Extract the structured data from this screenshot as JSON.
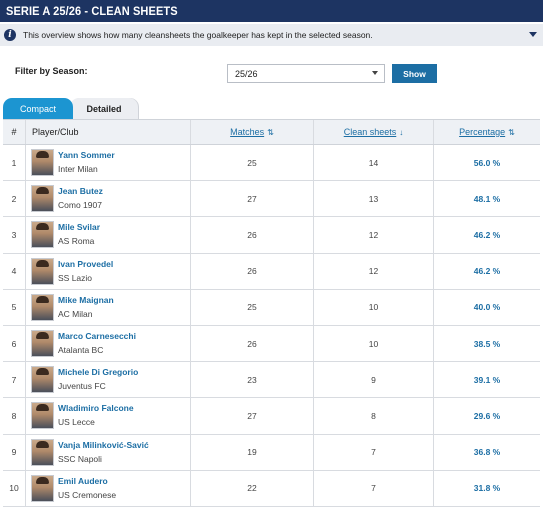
{
  "header": {
    "title": "SERIE A 25/26 - CLEAN SHEETS"
  },
  "info": {
    "icon": "info-icon",
    "text": "This overview shows how many cleansheets the goalkeeper has kept in the selected season."
  },
  "filter": {
    "label": "Filter by Season:",
    "season_value": "25/26",
    "show_label": "Show"
  },
  "tabs": [
    {
      "label": "Compact",
      "active": true
    },
    {
      "label": "Detailed",
      "active": false
    }
  ],
  "table": {
    "columns": {
      "rank": "#",
      "player": "Player/Club",
      "matches": "Matches",
      "clean_sheets": "Clean sheets",
      "percentage": "Percentage"
    },
    "rows": [
      {
        "rank": "1",
        "name": "Yann Sommer",
        "club": "Inter Milan",
        "matches": "25",
        "clean_sheets": "14",
        "percentage": "56.0 %"
      },
      {
        "rank": "2",
        "name": "Jean Butez",
        "club": "Como 1907",
        "matches": "27",
        "clean_sheets": "13",
        "percentage": "48.1 %"
      },
      {
        "rank": "3",
        "name": "Mile Svilar",
        "club": "AS Roma",
        "matches": "26",
        "clean_sheets": "12",
        "percentage": "46.2 %"
      },
      {
        "rank": "4",
        "name": "Ivan Provedel",
        "club": "SS Lazio",
        "matches": "26",
        "clean_sheets": "12",
        "percentage": "46.2 %"
      },
      {
        "rank": "5",
        "name": "Mike Maignan",
        "club": "AC Milan",
        "matches": "25",
        "clean_sheets": "10",
        "percentage": "40.0 %"
      },
      {
        "rank": "6",
        "name": "Marco Carnesecchi",
        "club": "Atalanta BC",
        "matches": "26",
        "clean_sheets": "10",
        "percentage": "38.5 %"
      },
      {
        "rank": "7",
        "name": "Michele Di Gregorio",
        "club": "Juventus FC",
        "matches": "23",
        "clean_sheets": "9",
        "percentage": "39.1 %"
      },
      {
        "rank": "8",
        "name": "Wladimiro Falcone",
        "club": "US Lecce",
        "matches": "27",
        "clean_sheets": "8",
        "percentage": "29.6 %"
      },
      {
        "rank": "9",
        "name": "Vanja Milinković-Savić",
        "club": "SSC Napoli",
        "matches": "19",
        "clean_sheets": "7",
        "percentage": "36.8 %"
      },
      {
        "rank": "10",
        "name": "Emil Audero",
        "club": "US Cremonese",
        "matches": "22",
        "clean_sheets": "7",
        "percentage": "31.8 %"
      }
    ]
  }
}
